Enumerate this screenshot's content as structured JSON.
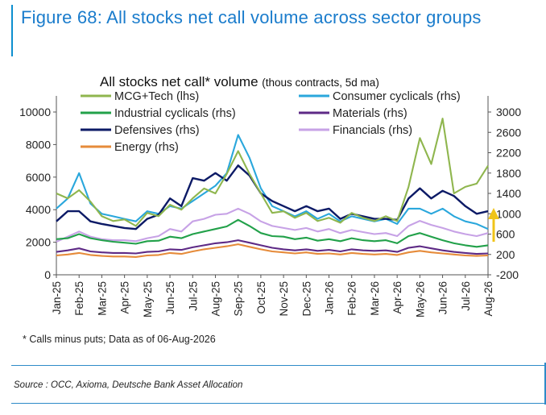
{
  "figure_title": "Figure 68: All stocks net call volume across sector groups",
  "footnote": "* Calls minus puts; Data as of 06-Aug-2026",
  "source": "Source : OCC, Axioma, Deutsche Bank Asset Allocation",
  "chart_data": {
    "type": "line",
    "title": "All stocks net call* volume",
    "subtitle": "(thous contracts, 5d ma)",
    "legend_placement": "top",
    "x_ticks": [
      "Jan-25",
      "Feb-25",
      "Mar-25",
      "Apr-25",
      "May-25",
      "Jun-25",
      "Jul-25",
      "Aug-25",
      "Sep-25",
      "Oct-25",
      "Nov-25",
      "Dec-25",
      "Jan-26",
      "Feb-26",
      "Mar-26",
      "Apr-26",
      "May-26",
      "Jun-26",
      "Jul-26",
      "Aug-26"
    ],
    "x_range": [
      "Jan-25",
      "Aug-26"
    ],
    "y_left": {
      "ticks": [
        0,
        2000,
        4000,
        6000,
        8000,
        10000
      ],
      "ylim": [
        0,
        10000
      ]
    },
    "y_right": {
      "ticks": [
        -200,
        200,
        600,
        1000,
        1400,
        1800,
        2200,
        2600,
        3000
      ],
      "ylim": [
        -200,
        3000
      ]
    },
    "series": [
      {
        "name": "MCG+Tech (lhs)",
        "axis": "left",
        "color": "#8fb64e",
        "x": [
          0,
          0.5,
          1,
          1.5,
          2,
          2.5,
          3,
          3.5,
          4,
          4.5,
          5,
          5.5,
          6,
          6.5,
          7,
          7.5,
          8,
          8.5,
          9,
          9.5,
          10,
          10.5,
          11,
          11.5,
          12,
          12.5,
          13,
          13.5,
          14,
          14.5,
          15,
          15.5,
          16,
          16.5,
          17,
          17.5,
          18,
          18.5,
          19
        ],
        "values": [
          5000,
          4700,
          5200,
          4500,
          3600,
          3300,
          3400,
          3000,
          3800,
          3600,
          4300,
          4000,
          4700,
          5300,
          5000,
          6200,
          7600,
          6200,
          5000,
          3800,
          3900,
          3500,
          3800,
          3300,
          3500,
          3200,
          3800,
          3500,
          3300,
          3600,
          3300,
          5400,
          8400,
          6800,
          9600,
          5000,
          5400,
          5600,
          6700
        ]
      },
      {
        "name": "Consumer cyclicals (rhs)",
        "axis": "right",
        "color": "#2aa7dc",
        "x": [
          0,
          0.5,
          1,
          1.5,
          2,
          2.5,
          3,
          3.5,
          4,
          4.5,
          5,
          5.5,
          6,
          6.5,
          7,
          7.5,
          8,
          8.5,
          9,
          9.5,
          10,
          10.5,
          11,
          11.5,
          12,
          12.5,
          13,
          13.5,
          14,
          14.5,
          15,
          15.5,
          16,
          16.5,
          17,
          17.5,
          18,
          18.5,
          19
        ],
        "values": [
          1100,
          1300,
          1800,
          1200,
          1000,
          950,
          900,
          850,
          1050,
          1000,
          1150,
          1100,
          1250,
          1400,
          1550,
          1800,
          2550,
          2100,
          1500,
          1150,
          1050,
          950,
          1050,
          900,
          1000,
          850,
          950,
          900,
          850,
          900,
          800,
          1100,
          1100,
          1000,
          1100,
          950,
          850,
          800,
          700
        ]
      },
      {
        "name": "Industrial cyclicals (rhs)",
        "axis": "right",
        "color": "#22a14a",
        "x": [
          0,
          0.5,
          1,
          1.5,
          2,
          2.5,
          3,
          3.5,
          4,
          4.5,
          5,
          5.5,
          6,
          6.5,
          7,
          7.5,
          8,
          8.5,
          9,
          9.5,
          10,
          10.5,
          11,
          11.5,
          12,
          12.5,
          13,
          13.5,
          14,
          14.5,
          15,
          15.5,
          16,
          16.5,
          17,
          17.5,
          18,
          18.5,
          19
        ],
        "values": [
          500,
          520,
          600,
          520,
          480,
          450,
          430,
          410,
          460,
          470,
          550,
          520,
          600,
          650,
          700,
          750,
          880,
          760,
          620,
          560,
          550,
          500,
          530,
          470,
          500,
          460,
          520,
          480,
          460,
          480,
          420,
          560,
          620,
          550,
          480,
          420,
          380,
          350,
          380
        ]
      },
      {
        "name": "Materials (rhs)",
        "axis": "right",
        "color": "#5e2a86",
        "x": [
          0,
          0.5,
          1,
          1.5,
          2,
          2.5,
          3,
          3.5,
          4,
          4.5,
          5,
          5.5,
          6,
          6.5,
          7,
          7.5,
          8,
          8.5,
          9,
          9.5,
          10,
          10.5,
          11,
          11.5,
          12,
          12.5,
          13,
          13.5,
          14,
          14.5,
          15,
          15.5,
          16,
          16.5,
          17,
          17.5,
          18,
          18.5,
          19
        ],
        "values": [
          250,
          280,
          320,
          260,
          240,
          230,
          230,
          220,
          250,
          260,
          300,
          290,
          340,
          380,
          420,
          440,
          480,
          430,
          380,
          330,
          300,
          280,
          300,
          270,
          290,
          260,
          300,
          280,
          270,
          280,
          250,
          330,
          360,
          320,
          280,
          250,
          230,
          210,
          220
        ]
      },
      {
        "name": "Defensives (rhs)",
        "axis": "right",
        "color": "#0c1a66",
        "x": [
          0,
          0.5,
          1,
          1.5,
          2,
          2.5,
          3,
          3.5,
          4,
          4.5,
          5,
          5.5,
          6,
          6.5,
          7,
          7.5,
          8,
          8.5,
          9,
          9.5,
          10,
          10.5,
          11,
          11.5,
          12,
          12.5,
          13,
          13.5,
          14,
          14.5,
          15,
          15.5,
          16,
          16.5,
          17,
          17.5,
          18,
          18.5,
          19
        ],
        "values": [
          850,
          1050,
          1050,
          850,
          800,
          760,
          720,
          700,
          900,
          980,
          1300,
          1150,
          1700,
          1650,
          1800,
          1650,
          1950,
          1750,
          1400,
          1250,
          1150,
          1050,
          1150,
          1050,
          1100,
          900,
          1000,
          950,
          900,
          900,
          880,
          1300,
          1500,
          1300,
          1450,
          1350,
          1150,
          1000,
          1050
        ]
      },
      {
        "name": "Financials (rhs)",
        "axis": "right",
        "color": "#c7a2e6",
        "x": [
          0,
          0.5,
          1,
          1.5,
          2,
          2.5,
          3,
          3.5,
          4,
          4.5,
          5,
          5.5,
          6,
          6.5,
          7,
          7.5,
          8,
          8.5,
          9,
          9.5,
          10,
          10.5,
          11,
          11.5,
          12,
          12.5,
          13,
          13.5,
          14,
          14.5,
          15,
          15.5,
          16,
          16.5,
          17,
          17.5,
          18,
          18.5,
          19
        ],
        "values": [
          450,
          550,
          650,
          550,
          500,
          480,
          480,
          460,
          520,
          560,
          700,
          650,
          850,
          900,
          980,
          1000,
          1100,
          1000,
          850,
          760,
          720,
          680,
          720,
          650,
          700,
          620,
          680,
          640,
          600,
          620,
          560,
          760,
          860,
          780,
          720,
          650,
          600,
          560,
          620
        ]
      },
      {
        "name": "Energy (rhs)",
        "axis": "right",
        "color": "#e68b3a",
        "x": [
          0,
          0.5,
          1,
          1.5,
          2,
          2.5,
          3,
          3.5,
          4,
          4.5,
          5,
          5.5,
          6,
          6.5,
          7,
          7.5,
          8,
          8.5,
          9,
          9.5,
          10,
          10.5,
          11,
          11.5,
          12,
          12.5,
          13,
          13.5,
          14,
          14.5,
          15,
          15.5,
          16,
          16.5,
          17,
          17.5,
          18,
          18.5,
          19
        ],
        "values": [
          180,
          200,
          230,
          190,
          170,
          160,
          160,
          150,
          180,
          190,
          230,
          210,
          260,
          300,
          330,
          360,
          400,
          350,
          300,
          260,
          240,
          220,
          240,
          210,
          220,
          200,
          230,
          210,
          200,
          210,
          190,
          240,
          270,
          240,
          220,
          200,
          180,
          170,
          180
        ]
      }
    ]
  }
}
